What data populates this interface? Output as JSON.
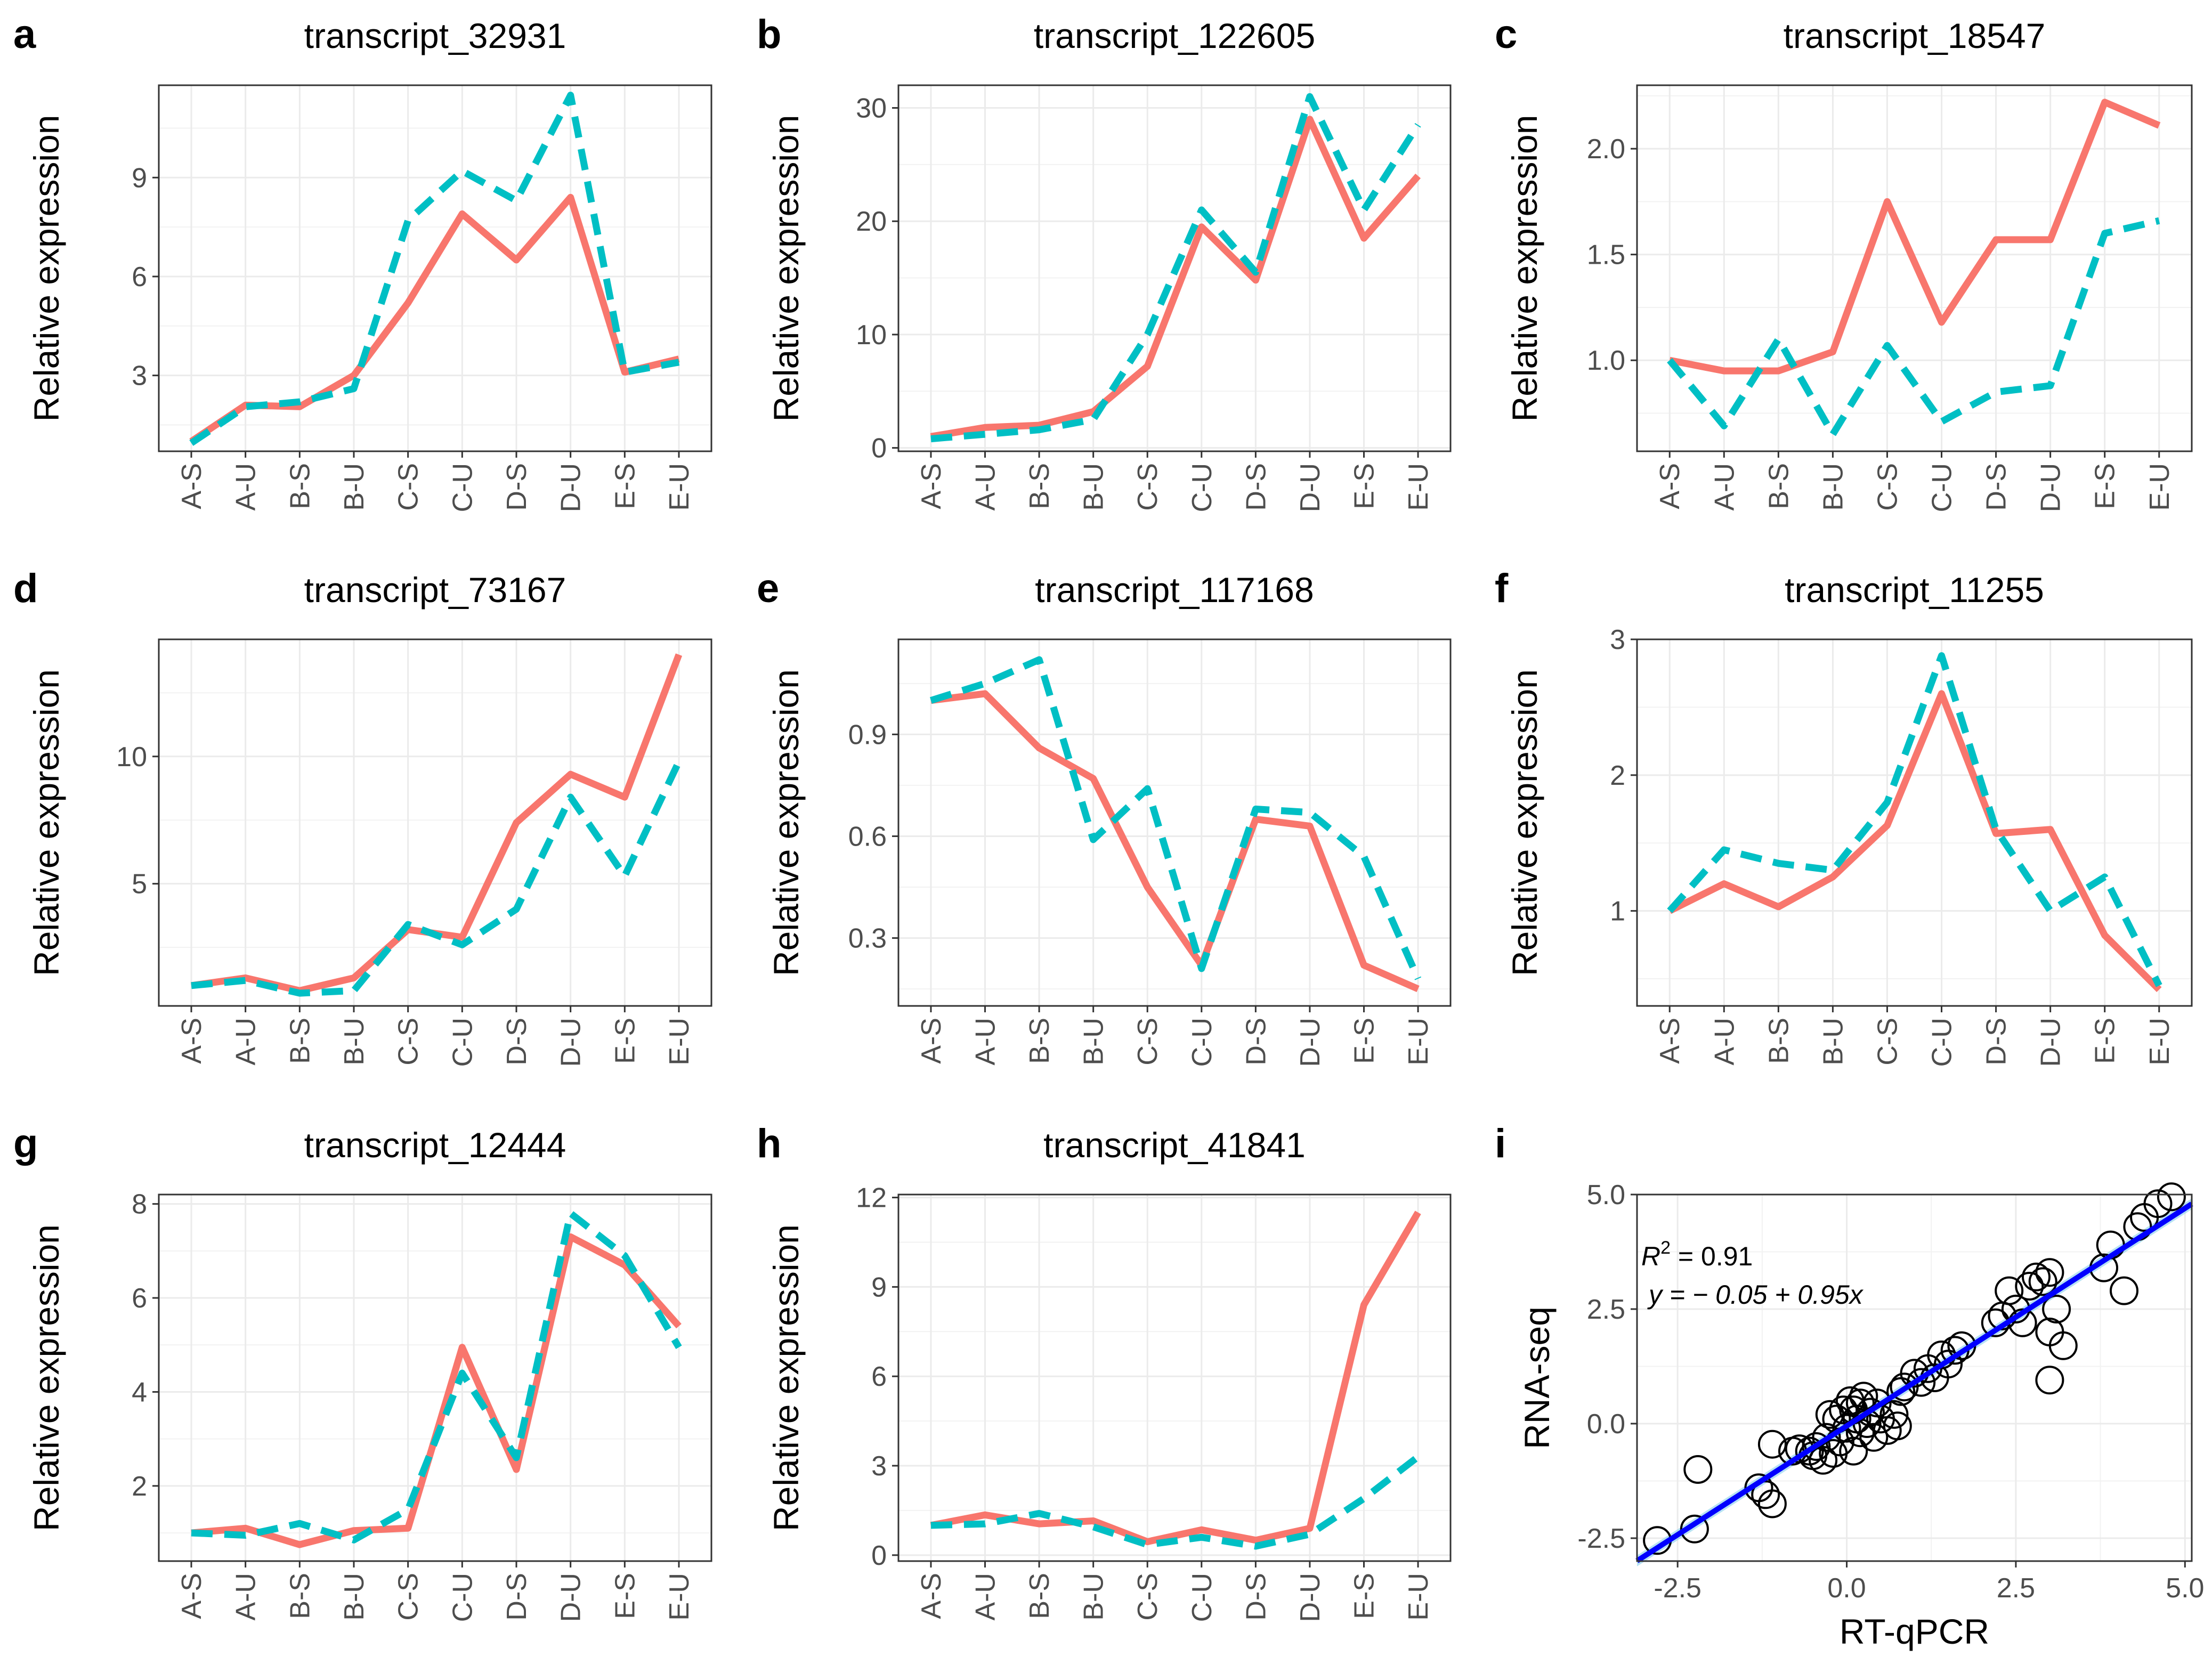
{
  "chart_data": [
    {
      "type": "line",
      "letter": "a",
      "title": "transcript_32931",
      "ylabel": "Relative expression",
      "categories": [
        "A-S",
        "A-U",
        "B-S",
        "B-U",
        "C-S",
        "C-U",
        "D-S",
        "D-U",
        "E-S",
        "E-U"
      ],
      "ylim": [
        0.7,
        11.8
      ],
      "yticks": [
        3,
        6,
        9
      ],
      "series": [
        {
          "name": "RNA-seq",
          "color": "#F8766D",
          "dash": "solid",
          "values": [
            1.0,
            2.1,
            2.05,
            3.0,
            5.2,
            7.9,
            6.5,
            8.4,
            3.1,
            3.5
          ]
        },
        {
          "name": "RT-qPCR",
          "color": "#00BFC4",
          "dash": "dashed",
          "values": [
            0.95,
            2.05,
            2.2,
            2.6,
            7.7,
            9.2,
            8.3,
            11.5,
            3.1,
            3.4
          ]
        }
      ]
    },
    {
      "type": "line",
      "letter": "b",
      "title": "transcript_122605",
      "ylabel": "Relative expression",
      "categories": [
        "A-S",
        "A-U",
        "B-S",
        "B-U",
        "C-S",
        "C-U",
        "D-S",
        "D-U",
        "E-S",
        "E-U"
      ],
      "ylim": [
        -0.3,
        32.0
      ],
      "yticks": [
        0,
        10,
        20,
        30
      ],
      "series": [
        {
          "name": "RNA-seq",
          "color": "#F8766D",
          "dash": "solid",
          "values": [
            1.0,
            1.8,
            2.0,
            3.2,
            7.2,
            19.5,
            14.8,
            29.0,
            18.5,
            24.0
          ]
        },
        {
          "name": "RT-qPCR",
          "color": "#00BFC4",
          "dash": "dashed",
          "values": [
            0.8,
            1.2,
            1.6,
            2.5,
            10.0,
            21.0,
            15.5,
            31.0,
            21.0,
            28.5
          ]
        }
      ]
    },
    {
      "type": "line",
      "letter": "c",
      "title": "transcript_18547",
      "ylabel": "Relative expression",
      "categories": [
        "A-S",
        "A-U",
        "B-S",
        "B-U",
        "C-S",
        "C-U",
        "D-S",
        "D-U",
        "E-S",
        "E-U"
      ],
      "ylim": [
        0.57,
        2.3
      ],
      "yticks": [
        1.0,
        1.5,
        2.0
      ],
      "ytick_labels": [
        "1.0",
        "1.5",
        "2.0"
      ],
      "series": [
        {
          "name": "RNA-seq",
          "color": "#F8766D",
          "dash": "solid",
          "values": [
            1.0,
            0.95,
            0.95,
            1.04,
            1.75,
            1.18,
            1.57,
            1.57,
            2.22,
            2.11
          ]
        },
        {
          "name": "RT-qPCR",
          "color": "#00BFC4",
          "dash": "dashed",
          "values": [
            1.0,
            0.69,
            1.1,
            0.65,
            1.07,
            0.71,
            0.85,
            0.88,
            1.6,
            1.66
          ]
        }
      ]
    },
    {
      "type": "line",
      "letter": "d",
      "title": "transcript_73167",
      "ylabel": "Relative expression",
      "categories": [
        "A-S",
        "A-U",
        "B-S",
        "B-U",
        "C-S",
        "C-U",
        "D-S",
        "D-U",
        "E-S",
        "E-U"
      ],
      "ylim": [
        0.2,
        14.6
      ],
      "yticks": [
        5,
        10
      ],
      "series": [
        {
          "name": "RNA-seq",
          "color": "#F8766D",
          "dash": "solid",
          "values": [
            1.0,
            1.3,
            0.8,
            1.3,
            3.2,
            2.9,
            7.4,
            9.3,
            8.4,
            14.0
          ]
        },
        {
          "name": "RT-qPCR",
          "color": "#00BFC4",
          "dash": "dashed",
          "values": [
            1.0,
            1.2,
            0.7,
            0.8,
            3.4,
            2.6,
            4.0,
            8.4,
            5.3,
            9.8
          ]
        }
      ]
    },
    {
      "type": "line",
      "letter": "e",
      "title": "transcript_117168",
      "ylabel": "Relative expression",
      "categories": [
        "A-S",
        "A-U",
        "B-S",
        "B-U",
        "C-S",
        "C-U",
        "D-S",
        "D-U",
        "E-S",
        "E-U"
      ],
      "ylim": [
        0.1,
        1.18
      ],
      "yticks": [
        0.3,
        0.6,
        0.9
      ],
      "ytick_labels": [
        "0.3",
        "0.6",
        "0.9"
      ],
      "series": [
        {
          "name": "RNA-seq",
          "color": "#F8766D",
          "dash": "solid",
          "values": [
            1.0,
            1.02,
            0.86,
            0.77,
            0.45,
            0.22,
            0.65,
            0.63,
            0.22,
            0.15
          ]
        },
        {
          "name": "RT-qPCR",
          "color": "#00BFC4",
          "dash": "dashed",
          "values": [
            1.0,
            1.05,
            1.12,
            0.59,
            0.74,
            0.21,
            0.68,
            0.67,
            0.54,
            0.18
          ]
        }
      ]
    },
    {
      "type": "line",
      "letter": "f",
      "title": "transcript_11255",
      "ylabel": "Relative expression",
      "categories": [
        "A-S",
        "A-U",
        "B-S",
        "B-U",
        "C-S",
        "C-U",
        "D-S",
        "D-U",
        "E-S",
        "E-U"
      ],
      "ylim": [
        0.3,
        3.0
      ],
      "yticks": [
        1,
        2,
        3
      ],
      "series": [
        {
          "name": "RNA-seq",
          "color": "#F8766D",
          "dash": "solid",
          "values": [
            1.0,
            1.2,
            1.03,
            1.25,
            1.63,
            2.6,
            1.57,
            1.6,
            0.82,
            0.42
          ]
        },
        {
          "name": "RT-qPCR",
          "color": "#00BFC4",
          "dash": "dashed",
          "values": [
            1.0,
            1.45,
            1.35,
            1.3,
            1.8,
            2.88,
            1.6,
            1.0,
            1.25,
            0.45
          ]
        }
      ]
    },
    {
      "type": "line",
      "letter": "g",
      "title": "transcript_12444",
      "ylabel": "Relative expression",
      "categories": [
        "A-S",
        "A-U",
        "B-S",
        "B-U",
        "C-S",
        "C-U",
        "D-S",
        "D-U",
        "E-S",
        "E-U"
      ],
      "ylim": [
        0.4,
        8.2
      ],
      "yticks": [
        2,
        4,
        6,
        8
      ],
      "series": [
        {
          "name": "RNA-seq",
          "color": "#F8766D",
          "dash": "solid",
          "values": [
            1.0,
            1.1,
            0.75,
            1.05,
            1.1,
            4.95,
            2.35,
            7.3,
            6.7,
            5.4
          ]
        },
        {
          "name": "RT-qPCR",
          "color": "#00BFC4",
          "dash": "dashed",
          "values": [
            1.0,
            0.95,
            1.2,
            0.85,
            1.5,
            4.4,
            2.6,
            7.8,
            6.9,
            4.95
          ]
        }
      ]
    },
    {
      "type": "line",
      "letter": "h",
      "title": "transcript_41841",
      "ylabel": "Relative expression",
      "categories": [
        "A-S",
        "A-U",
        "B-S",
        "B-U",
        "C-S",
        "C-U",
        "D-S",
        "D-U",
        "E-S",
        "E-U"
      ],
      "ylim": [
        -0.2,
        12.1
      ],
      "yticks": [
        0,
        3,
        6,
        9,
        12
      ],
      "series": [
        {
          "name": "RNA-seq",
          "color": "#F8766D",
          "dash": "solid",
          "values": [
            1.0,
            1.35,
            1.05,
            1.15,
            0.45,
            0.85,
            0.5,
            0.9,
            8.4,
            11.5
          ]
        },
        {
          "name": "RT-qPCR",
          "color": "#00BFC4",
          "dash": "dashed",
          "values": [
            1.0,
            1.05,
            1.4,
            0.95,
            0.35,
            0.6,
            0.3,
            0.7,
            1.9,
            3.3
          ]
        }
      ]
    },
    {
      "type": "scatter",
      "letter": "i",
      "xlabel": "RT-qPCR",
      "ylabel": "RNA-seq",
      "xlim": [
        -3.1,
        5.1
      ],
      "ylim": [
        -3.0,
        5.0
      ],
      "xticks": [
        -2.5,
        0.0,
        2.5,
        5.0
      ],
      "xtick_labels": [
        "-2.5",
        "0.0",
        "2.5",
        "5.0"
      ],
      "yticks": [
        -2.5,
        0.0,
        2.5,
        5.0
      ],
      "ytick_labels": [
        "-2.5",
        "0.0",
        "2.5",
        "5.0"
      ],
      "r2_label": "R",
      "r2_exp": "2",
      "r2_value": " = 0.91",
      "equation": "y = − 0.05 + 0.95x",
      "fit": {
        "intercept": -0.05,
        "slope": 0.95,
        "color": "#0000FF",
        "band_color": "#87CEEB"
      },
      "points": [
        [
          -2.8,
          -2.55
        ],
        [
          -2.25,
          -2.3
        ],
        [
          -2.2,
          -1.0
        ],
        [
          -1.3,
          -1.4
        ],
        [
          -1.2,
          -1.55
        ],
        [
          -1.1,
          -1.75
        ],
        [
          -1.1,
          -0.45
        ],
        [
          -0.8,
          -0.6
        ],
        [
          -0.7,
          -0.55
        ],
        [
          -0.55,
          -0.6
        ],
        [
          -0.5,
          -0.7
        ],
        [
          -0.45,
          -0.5
        ],
        [
          -0.35,
          -0.8
        ],
        [
          -0.3,
          -0.3
        ],
        [
          -0.25,
          0.2
        ],
        [
          -0.2,
          -0.65
        ],
        [
          -0.15,
          0.1
        ],
        [
          -0.1,
          -0.4
        ],
        [
          -0.05,
          0.3
        ],
        [
          0.0,
          -0.1
        ],
        [
          0.05,
          0.5
        ],
        [
          0.1,
          0.3
        ],
        [
          0.1,
          -0.6
        ],
        [
          0.15,
          0.1
        ],
        [
          0.2,
          0.45
        ],
        [
          0.2,
          -0.2
        ],
        [
          0.25,
          0.6
        ],
        [
          0.3,
          0.0
        ],
        [
          0.35,
          0.25
        ],
        [
          0.4,
          -0.3
        ],
        [
          0.45,
          0.45
        ],
        [
          0.5,
          0.1
        ],
        [
          0.6,
          -0.15
        ],
        [
          0.7,
          0.2
        ],
        [
          0.75,
          -0.05
        ],
        [
          0.8,
          0.7
        ],
        [
          0.85,
          0.8
        ],
        [
          1.0,
          1.1
        ],
        [
          1.1,
          0.9
        ],
        [
          1.2,
          1.2
        ],
        [
          1.3,
          1.0
        ],
        [
          1.4,
          1.5
        ],
        [
          1.5,
          1.3
        ],
        [
          1.6,
          1.6
        ],
        [
          1.7,
          1.7
        ],
        [
          2.2,
          2.2
        ],
        [
          2.3,
          2.35
        ],
        [
          2.4,
          2.9
        ],
        [
          2.5,
          2.5
        ],
        [
          2.6,
          2.2
        ],
        [
          2.7,
          3.0
        ],
        [
          2.8,
          3.2
        ],
        [
          2.9,
          3.1
        ],
        [
          3.0,
          3.3
        ],
        [
          3.0,
          2.0
        ],
        [
          3.1,
          2.5
        ],
        [
          3.2,
          1.7
        ],
        [
          3.0,
          0.95
        ],
        [
          3.8,
          3.4
        ],
        [
          3.9,
          3.9
        ],
        [
          4.1,
          2.9
        ],
        [
          4.3,
          4.3
        ],
        [
          4.4,
          4.5
        ],
        [
          4.6,
          4.8
        ],
        [
          4.8,
          4.95
        ]
      ]
    }
  ]
}
